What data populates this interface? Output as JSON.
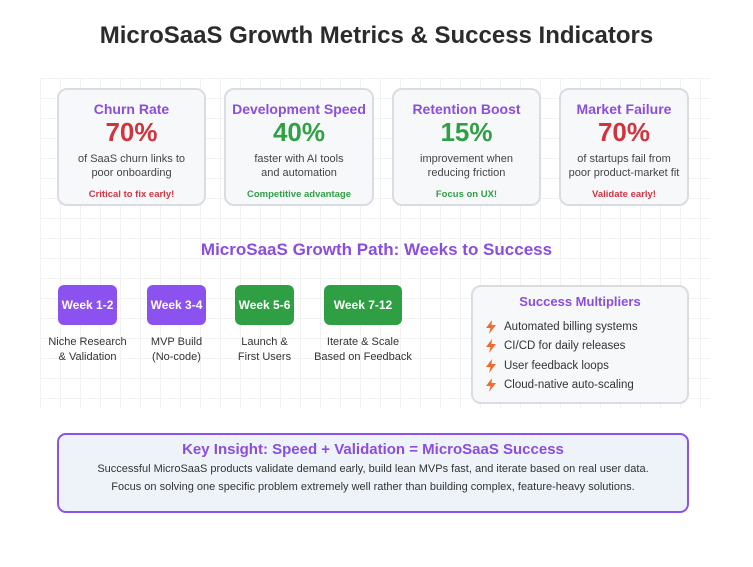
{
  "title": "MicroSaaS Growth Metrics & Success Indicators",
  "metrics": [
    {
      "title": "Churn Rate",
      "value": "70%",
      "desc1": "of SaaS churn links to",
      "desc2": "poor onboarding",
      "note": "Critical to fix early!",
      "color": "#d2343f"
    },
    {
      "title": "Development Speed",
      "value": "40%",
      "desc1": "faster with AI tools",
      "desc2": "and automation",
      "note": "Competitive advantage",
      "color": "#2fa044"
    },
    {
      "title": "Retention Boost",
      "value": "15%",
      "desc1": "improvement when",
      "desc2": "reducing friction",
      "note": "Focus on UX!",
      "color": "#2fa044"
    },
    {
      "title": "Market Failure",
      "value": "70%",
      "desc1": "of startups fail from",
      "desc2": "poor product-market fit",
      "note": "Validate early!",
      "color": "#d2343f"
    }
  ],
  "path": {
    "title": "MicroSaaS Growth Path: Weeks to Success",
    "weeks": [
      {
        "label": "Week 1-2",
        "desc1": "Niche Research",
        "desc2": "& Validation"
      },
      {
        "label": "Week 3-4",
        "desc1": "MVP Build",
        "desc2": "(No-code)"
      },
      {
        "label": "Week 5-6",
        "desc1": "Launch &",
        "desc2": "First Users"
      },
      {
        "label": "Week 7-12",
        "desc1": "Iterate & Scale",
        "desc2": "Based on Feedback"
      }
    ]
  },
  "multipliers": {
    "title": "Success Multipliers",
    "icon": "lightning-bolt-icon",
    "items": [
      "Automated billing systems",
      "CI/CD for daily releases",
      "User feedback loops",
      "Cloud-native auto-scaling"
    ]
  },
  "insight": {
    "title": "Key Insight: Speed + Validation = MicroSaaS Success",
    "line1": "Successful MicroSaaS products validate demand early, build lean MVPs fast, and iterate based on real user data.",
    "line2": "Focus on solving one specific problem extremely well rather than building complex, feature-heavy solutions."
  },
  "colors": {
    "purple": "#8c52f0",
    "green": "#2e9f43",
    "red": "#d2343f",
    "bolt": "#f26b2e"
  }
}
